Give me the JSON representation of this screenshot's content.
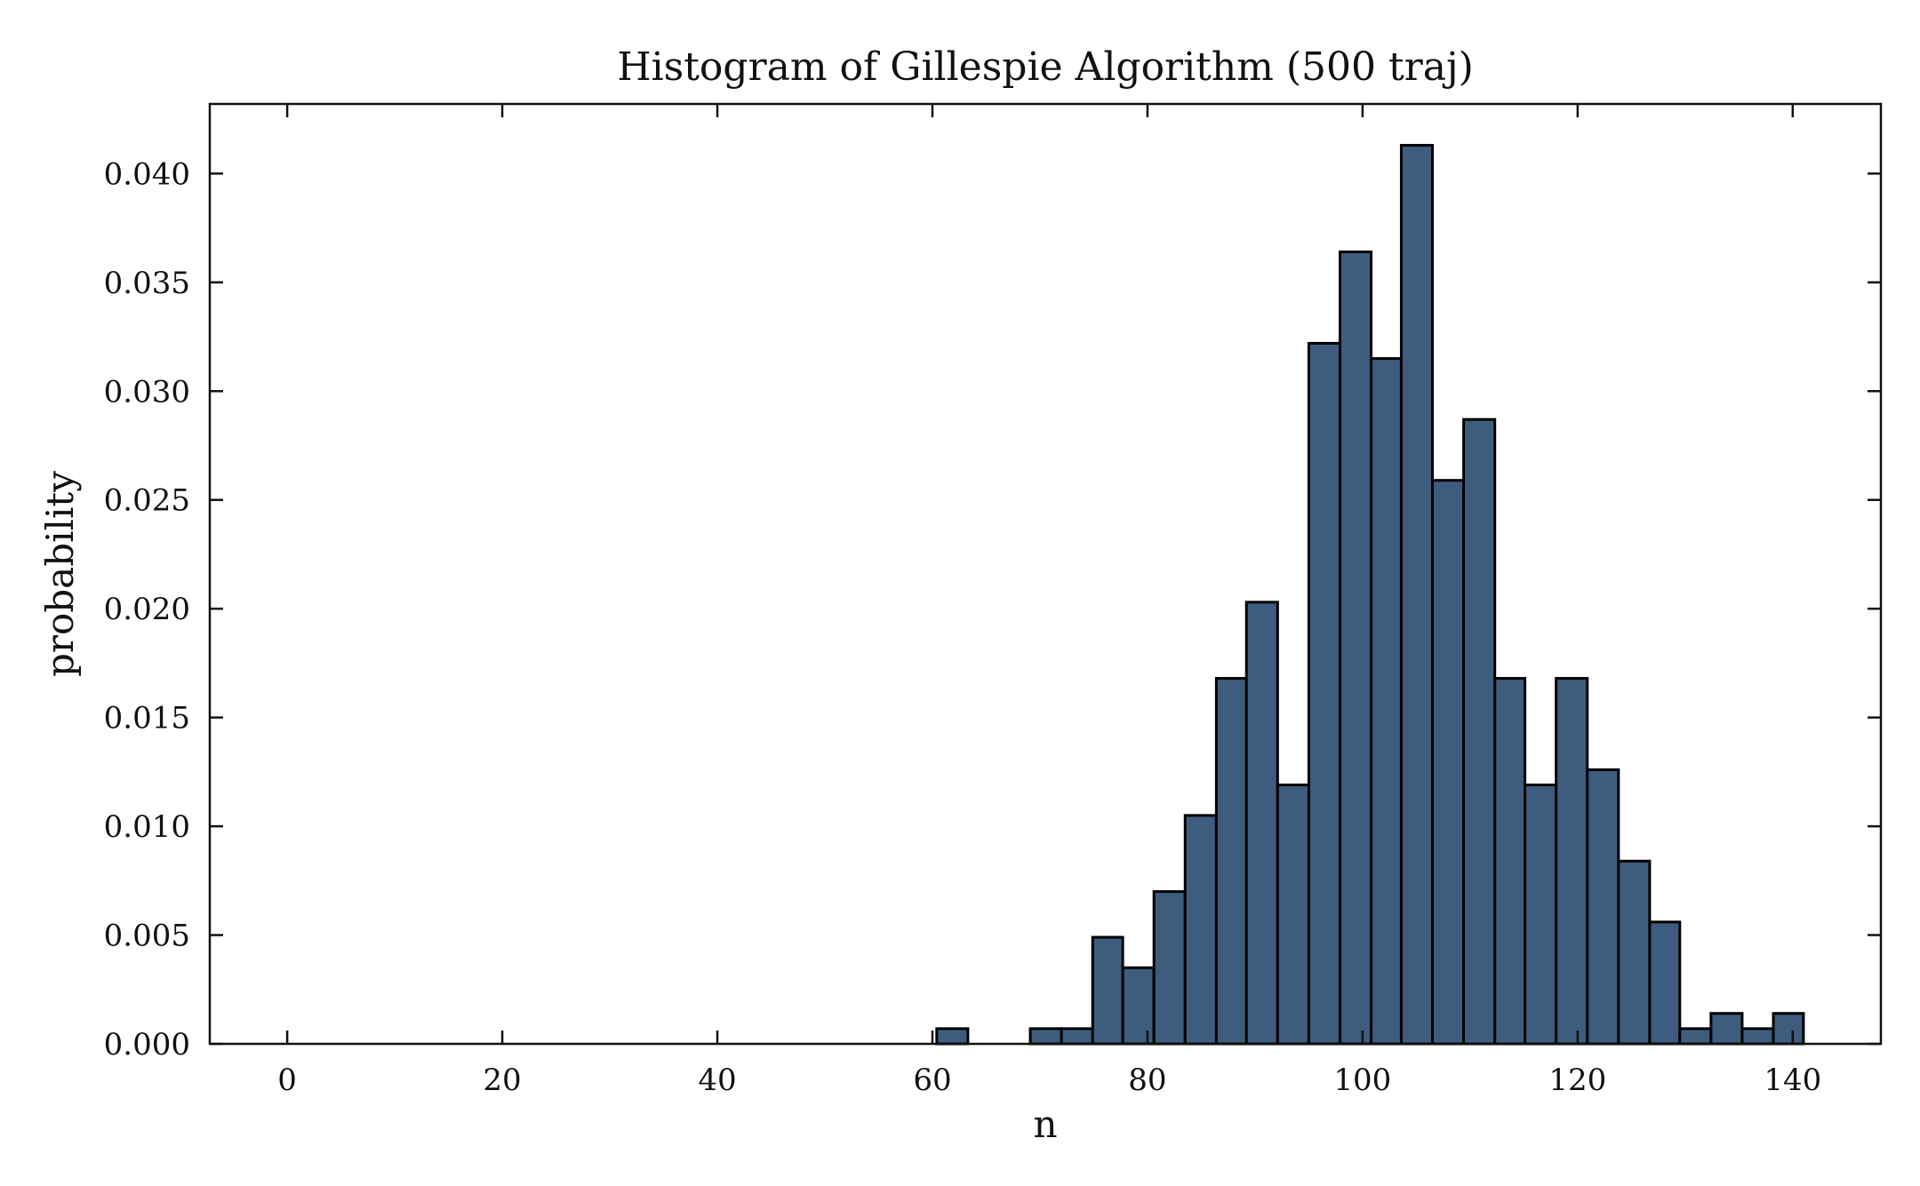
{
  "chart_data": {
    "type": "bar",
    "title": "Histogram of Gillespie Algorithm (500 traj)",
    "xlabel": "n",
    "ylabel": "probability",
    "xlim": [
      -7.2,
      148.2
    ],
    "ylim": [
      0,
      0.0432
    ],
    "xticks": [
      0,
      20,
      40,
      60,
      80,
      100,
      120,
      140
    ],
    "xtick_labels": [
      "0",
      "20",
      "40",
      "60",
      "80",
      "100",
      "120",
      "140"
    ],
    "yticks": [
      0,
      0.005,
      0.01,
      0.015,
      0.02,
      0.025,
      0.03,
      0.035,
      0.04
    ],
    "ytick_labels": [
      "0.000",
      "0.005",
      "0.010",
      "0.015",
      "0.020",
      "0.025",
      "0.030",
      "0.035",
      "0.040"
    ],
    "grid": false,
    "bins": [
      {
        "x0": -5.4,
        "x1": 60.4,
        "value": 0
      },
      {
        "x0": 60.4,
        "x1": 63.3,
        "value": 0.0007
      },
      {
        "x0": 63.3,
        "x1": 69.1,
        "value": 0
      },
      {
        "x0": 69.1,
        "x1": 72.0,
        "value": 0.0007
      },
      {
        "x0": 72.0,
        "x1": 74.9,
        "value": 0.0007
      },
      {
        "x0": 74.9,
        "x1": 77.7,
        "value": 0.0049
      },
      {
        "x0": 77.7,
        "x1": 80.6,
        "value": 0.0035
      },
      {
        "x0": 80.6,
        "x1": 83.5,
        "value": 0.007
      },
      {
        "x0": 83.5,
        "x1": 86.4,
        "value": 0.0105
      },
      {
        "x0": 86.4,
        "x1": 89.2,
        "value": 0.0168
      },
      {
        "x0": 89.2,
        "x1": 92.1,
        "value": 0.0203
      },
      {
        "x0": 92.1,
        "x1": 95.0,
        "value": 0.0119
      },
      {
        "x0": 95.0,
        "x1": 97.9,
        "value": 0.0322
      },
      {
        "x0": 97.9,
        "x1": 100.8,
        "value": 0.0364
      },
      {
        "x0": 100.8,
        "x1": 103.6,
        "value": 0.0315
      },
      {
        "x0": 103.6,
        "x1": 106.5,
        "value": 0.0413
      },
      {
        "x0": 106.5,
        "x1": 109.4,
        "value": 0.0259
      },
      {
        "x0": 109.4,
        "x1": 112.3,
        "value": 0.0287
      },
      {
        "x0": 112.3,
        "x1": 115.1,
        "value": 0.0168
      },
      {
        "x0": 115.1,
        "x1": 118.0,
        "value": 0.0119
      },
      {
        "x0": 118.0,
        "x1": 120.9,
        "value": 0.0168
      },
      {
        "x0": 120.9,
        "x1": 123.8,
        "value": 0.0126
      },
      {
        "x0": 123.8,
        "x1": 126.7,
        "value": 0.0084
      },
      {
        "x0": 126.7,
        "x1": 129.5,
        "value": 0.0056
      },
      {
        "x0": 129.5,
        "x1": 132.4,
        "value": 0.0007
      },
      {
        "x0": 132.4,
        "x1": 135.3,
        "value": 0.0014
      },
      {
        "x0": 135.3,
        "x1": 138.2,
        "value": 0.0007
      },
      {
        "x0": 138.2,
        "x1": 141.0,
        "value": 0.0014
      }
    ],
    "colors": {
      "bar_fill": "#3e5c7e",
      "bar_edge": "#000000",
      "axis": "#111111",
      "background": "#ffffff"
    }
  }
}
